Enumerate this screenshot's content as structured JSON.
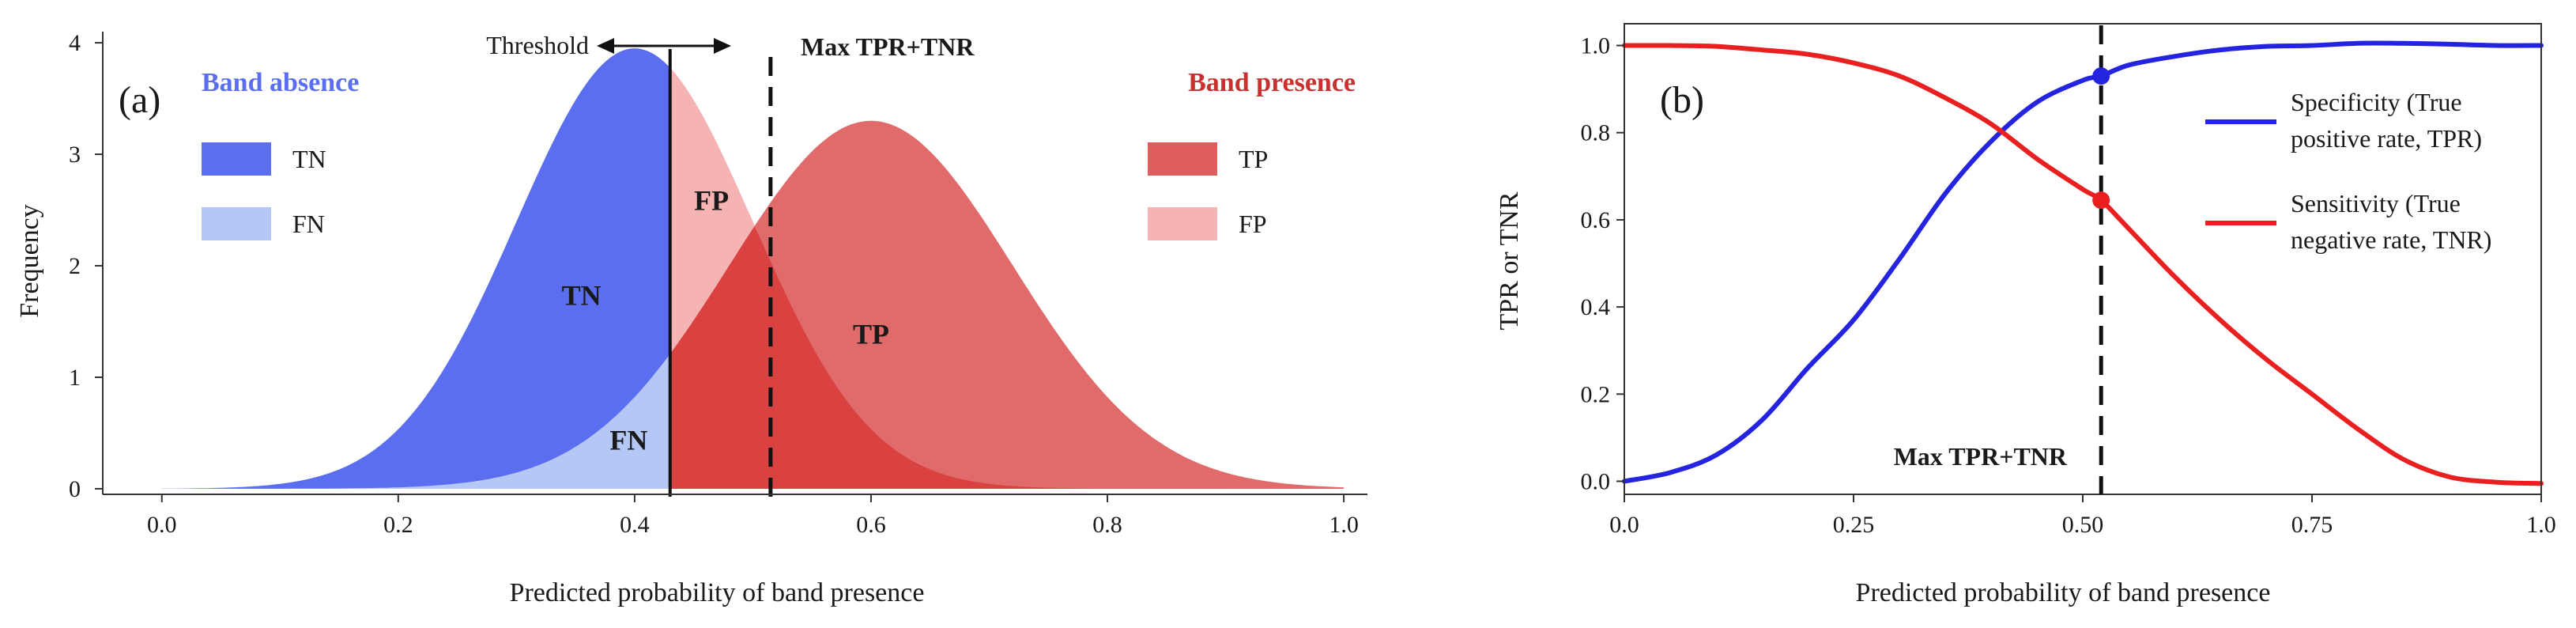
{
  "chart_data": [
    {
      "panel_label": "(a)",
      "type": "area",
      "xlabel": "Predicted probability of band presence",
      "ylabel": "Frequency",
      "xlim": [
        -0.05,
        1.02
      ],
      "ylim": [
        -0.05,
        4.1
      ],
      "xticks": [
        0.0,
        0.2,
        0.4,
        0.6,
        0.8,
        1.0
      ],
      "xtick_labels": [
        "0.0",
        "0.2",
        "0.4",
        "0.6",
        "0.8",
        "1.0"
      ],
      "yticks": [
        0,
        1,
        2,
        3,
        4
      ],
      "ytick_labels": [
        "0",
        "1",
        "2",
        "3",
        "4"
      ],
      "grid": false,
      "threshold": 0.43,
      "threshold_label": "Threshold",
      "max_line_x": 0.515,
      "max_line_label": "Max TPR+TNR",
      "distributions": [
        {
          "name": "Band absence",
          "mean": 0.4,
          "sd": 0.1,
          "peak": 3.95,
          "color": "#5b6ef0",
          "light_color": "#b4c7f5"
        },
        {
          "name": "Band presence",
          "mean": 0.6,
          "sd": 0.12,
          "peak": 3.3,
          "color": "#de5d5d",
          "light_color": "#f6b3b3"
        }
      ],
      "overlap_color": "#d83b3b",
      "legend": [
        {
          "group": "Band absence",
          "group_color": "#5b6ef0",
          "items": [
            {
              "label": "TN",
              "color": "#5b6ef0"
            },
            {
              "label": "FN",
              "color": "#b4c7f5"
            }
          ]
        },
        {
          "group": "Band presence",
          "group_color": "#c93030",
          "items": [
            {
              "label": "TP",
              "color": "#de5d5d"
            },
            {
              "label": "FP",
              "color": "#f6b3b3"
            }
          ]
        }
      ],
      "region_labels": [
        {
          "text": "TN",
          "x": 0.355,
          "y": 1.65
        },
        {
          "text": "FN",
          "x": 0.395,
          "y": 0.35
        },
        {
          "text": "FP",
          "x": 0.465,
          "y": 2.5
        },
        {
          "text": "TP",
          "x": 0.6,
          "y": 1.3
        }
      ]
    },
    {
      "panel_label": "(b)",
      "type": "line",
      "xlabel": "Predicted probability of band presence",
      "ylabel": "TPR or TNR",
      "xlim": [
        0.0,
        1.0
      ],
      "ylim": [
        -0.03,
        1.05
      ],
      "xticks": [
        0.0,
        0.25,
        0.5,
        0.75,
        1.0
      ],
      "xtick_labels": [
        "0.0",
        "0.25",
        "0.50",
        "0.75",
        "1.0"
      ],
      "yticks": [
        0.0,
        0.2,
        0.4,
        0.6,
        0.8,
        1.0
      ],
      "ytick_labels": [
        "0.0",
        "0.2",
        "0.4",
        "0.6",
        "0.8",
        "1.0"
      ],
      "grid": false,
      "legend_placement": "right",
      "series": [
        {
          "name_lines": [
            "Specificity (True",
            "positive rate, TPR)"
          ],
          "color": "#2323e0",
          "x": [
            0.0,
            0.05,
            0.1,
            0.15,
            0.2,
            0.25,
            0.3,
            0.35,
            0.4,
            0.45,
            0.5,
            0.52,
            0.55,
            0.6,
            0.65,
            0.7,
            0.75,
            0.8,
            0.85,
            0.9,
            0.95,
            1.0
          ],
          "y": [
            0.0,
            0.02,
            0.06,
            0.14,
            0.26,
            0.37,
            0.51,
            0.66,
            0.78,
            0.87,
            0.92,
            0.93,
            0.955,
            0.975,
            0.99,
            0.998,
            1.0,
            1.005,
            1.005,
            1.003,
            1.0,
            1.0
          ]
        },
        {
          "name_lines": [
            "Sensitivity (True",
            "negative rate, TNR)"
          ],
          "color": "#e82020",
          "x": [
            0.0,
            0.05,
            0.1,
            0.15,
            0.2,
            0.25,
            0.3,
            0.35,
            0.4,
            0.45,
            0.5,
            0.52,
            0.55,
            0.6,
            0.65,
            0.7,
            0.75,
            0.8,
            0.85,
            0.9,
            0.95,
            1.0
          ],
          "y": [
            1.0,
            1.0,
            0.998,
            0.99,
            0.98,
            0.96,
            0.93,
            0.88,
            0.82,
            0.74,
            0.67,
            0.645,
            0.58,
            0.47,
            0.37,
            0.28,
            0.2,
            0.12,
            0.05,
            0.01,
            -0.002,
            -0.005
          ]
        }
      ],
      "markers": [
        {
          "x": 0.52,
          "y": 0.93,
          "color": "#2323e0"
        },
        {
          "x": 0.52,
          "y": 0.645,
          "color": "#e82020"
        }
      ],
      "max_line_x": 0.52,
      "max_line_label": "Max TPR+TNR"
    }
  ]
}
